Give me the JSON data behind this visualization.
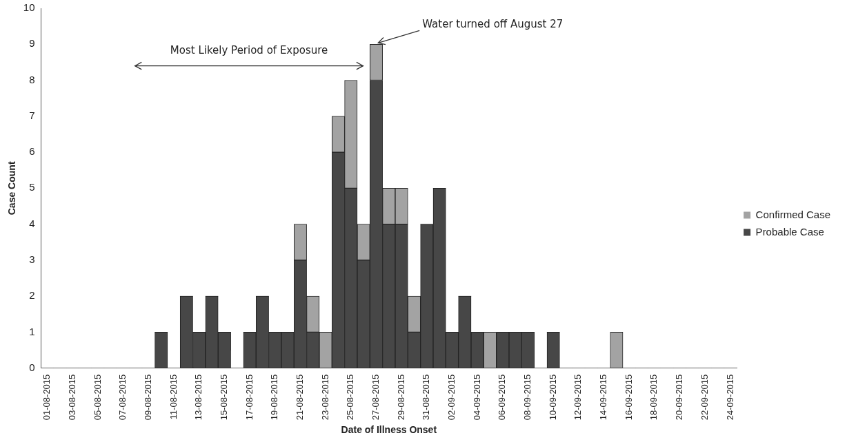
{
  "chart_data": {
    "type": "bar",
    "stacked": true,
    "xlabel": "Date of Illness Onset",
    "ylabel": "Case Count",
    "categories": [
      "01-08-2015",
      null,
      "03-08-2015",
      null,
      "05-08-2015",
      null,
      "07-08-2015",
      null,
      "09-08-2015",
      null,
      "11-08-2015",
      null,
      "13-08-2015",
      null,
      "15-08-2015",
      null,
      "17-08-2015",
      null,
      "19-08-2015",
      null,
      "21-08-2015",
      null,
      "23-08-2015",
      null,
      "25-08-2015",
      null,
      "27-08-2015",
      null,
      "29-08-2015",
      null,
      "31-08-2015",
      null,
      "02-09-2015",
      null,
      "04-09-2015",
      null,
      "06-09-2015",
      null,
      "08-09-2015",
      null,
      "10-09-2015",
      null,
      "12-09-2015",
      null,
      "14-09-2015",
      null,
      "16-09-2015",
      null,
      "18-09-2015",
      null,
      "20-09-2015",
      null,
      "22-09-2015",
      null,
      "24-09-2015"
    ],
    "series": [
      {
        "name": "Probable Case",
        "color": "#474747",
        "values": [
          0,
          0,
          0,
          0,
          0,
          0,
          0,
          0,
          0,
          1,
          0,
          2,
          1,
          2,
          1,
          0,
          1,
          2,
          1,
          1,
          3,
          1,
          0,
          6,
          5,
          3,
          8,
          4,
          4,
          1,
          4,
          5,
          1,
          2,
          1,
          0,
          1,
          1,
          1,
          0,
          1,
          0,
          0,
          0,
          0,
          0,
          0,
          0,
          0,
          0,
          0,
          0,
          0,
          0,
          0
        ]
      },
      {
        "name": "Confirmed Case",
        "color": "#a3a3a3",
        "values": [
          0,
          0,
          0,
          0,
          0,
          0,
          0,
          0,
          0,
          0,
          0,
          0,
          0,
          0,
          0,
          0,
          0,
          0,
          0,
          0,
          1,
          1,
          1,
          1,
          3,
          1,
          1,
          1,
          1,
          1,
          0,
          0,
          0,
          0,
          0,
          1,
          0,
          0,
          0,
          0,
          0,
          0,
          0,
          0,
          0,
          1,
          0,
          0,
          0,
          0,
          0,
          0,
          0,
          0,
          0
        ]
      }
    ],
    "ylim": [
      0,
      10
    ],
    "yticks": [
      0,
      1,
      2,
      3,
      4,
      5,
      6,
      7,
      8,
      9,
      10
    ],
    "grid": false,
    "legend": "right",
    "annotations": [
      "Most Likely Period of Exposure",
      {
        "text": "Water turned off August 27",
        "x": "27-08-2015",
        "y": 9
      }
    ]
  }
}
